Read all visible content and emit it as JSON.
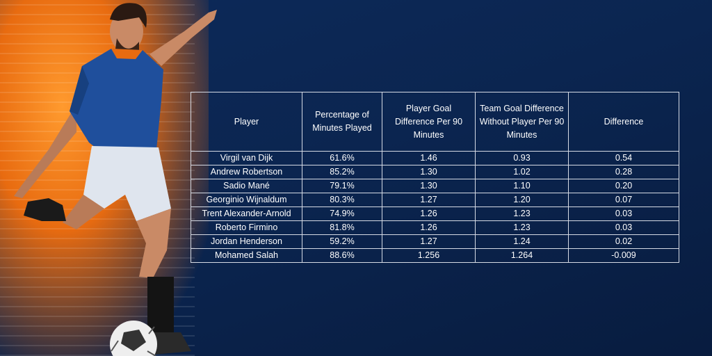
{
  "table": {
    "headers": [
      "Player",
      "Percentage of Minutes Played",
      "Player Goal Difference Per 90 Minutes",
      "Team Goal Difference Without Player Per 90 Minutes",
      "Difference"
    ],
    "rows": [
      [
        "Virgil van Dijk",
        "61.6%",
        "1.46",
        "0.93",
        "0.54"
      ],
      [
        "Andrew Robertson",
        "85.2%",
        "1.30",
        "1.02",
        "0.28"
      ],
      [
        "Sadio Mané",
        "79.1%",
        "1.30",
        "1.10",
        "0.20"
      ],
      [
        "Georginio Wijnaldum",
        "80.3%",
        "1.27",
        "1.20",
        "0.07"
      ],
      [
        "Trent Alexander-Arnold",
        "74.9%",
        "1.26",
        "1.23",
        "0.03"
      ],
      [
        "Roberto Firmino",
        "81.8%",
        "1.26",
        "1.23",
        "0.03"
      ],
      [
        "Jordan Henderson",
        "59.2%",
        "1.27",
        "1.24",
        "0.02"
      ],
      [
        "Mohamed Salah",
        "88.6%",
        "1.256",
        "1.264",
        "-0.009"
      ]
    ]
  },
  "colors": {
    "background": "#0b2550",
    "accent": "#e86b10",
    "jersey": "#1f4f9c",
    "border": "#d6dbe5"
  },
  "icons": {
    "player_illustration": "soccer-player-kicking-illustration",
    "ball": "soccer-ball-icon"
  }
}
